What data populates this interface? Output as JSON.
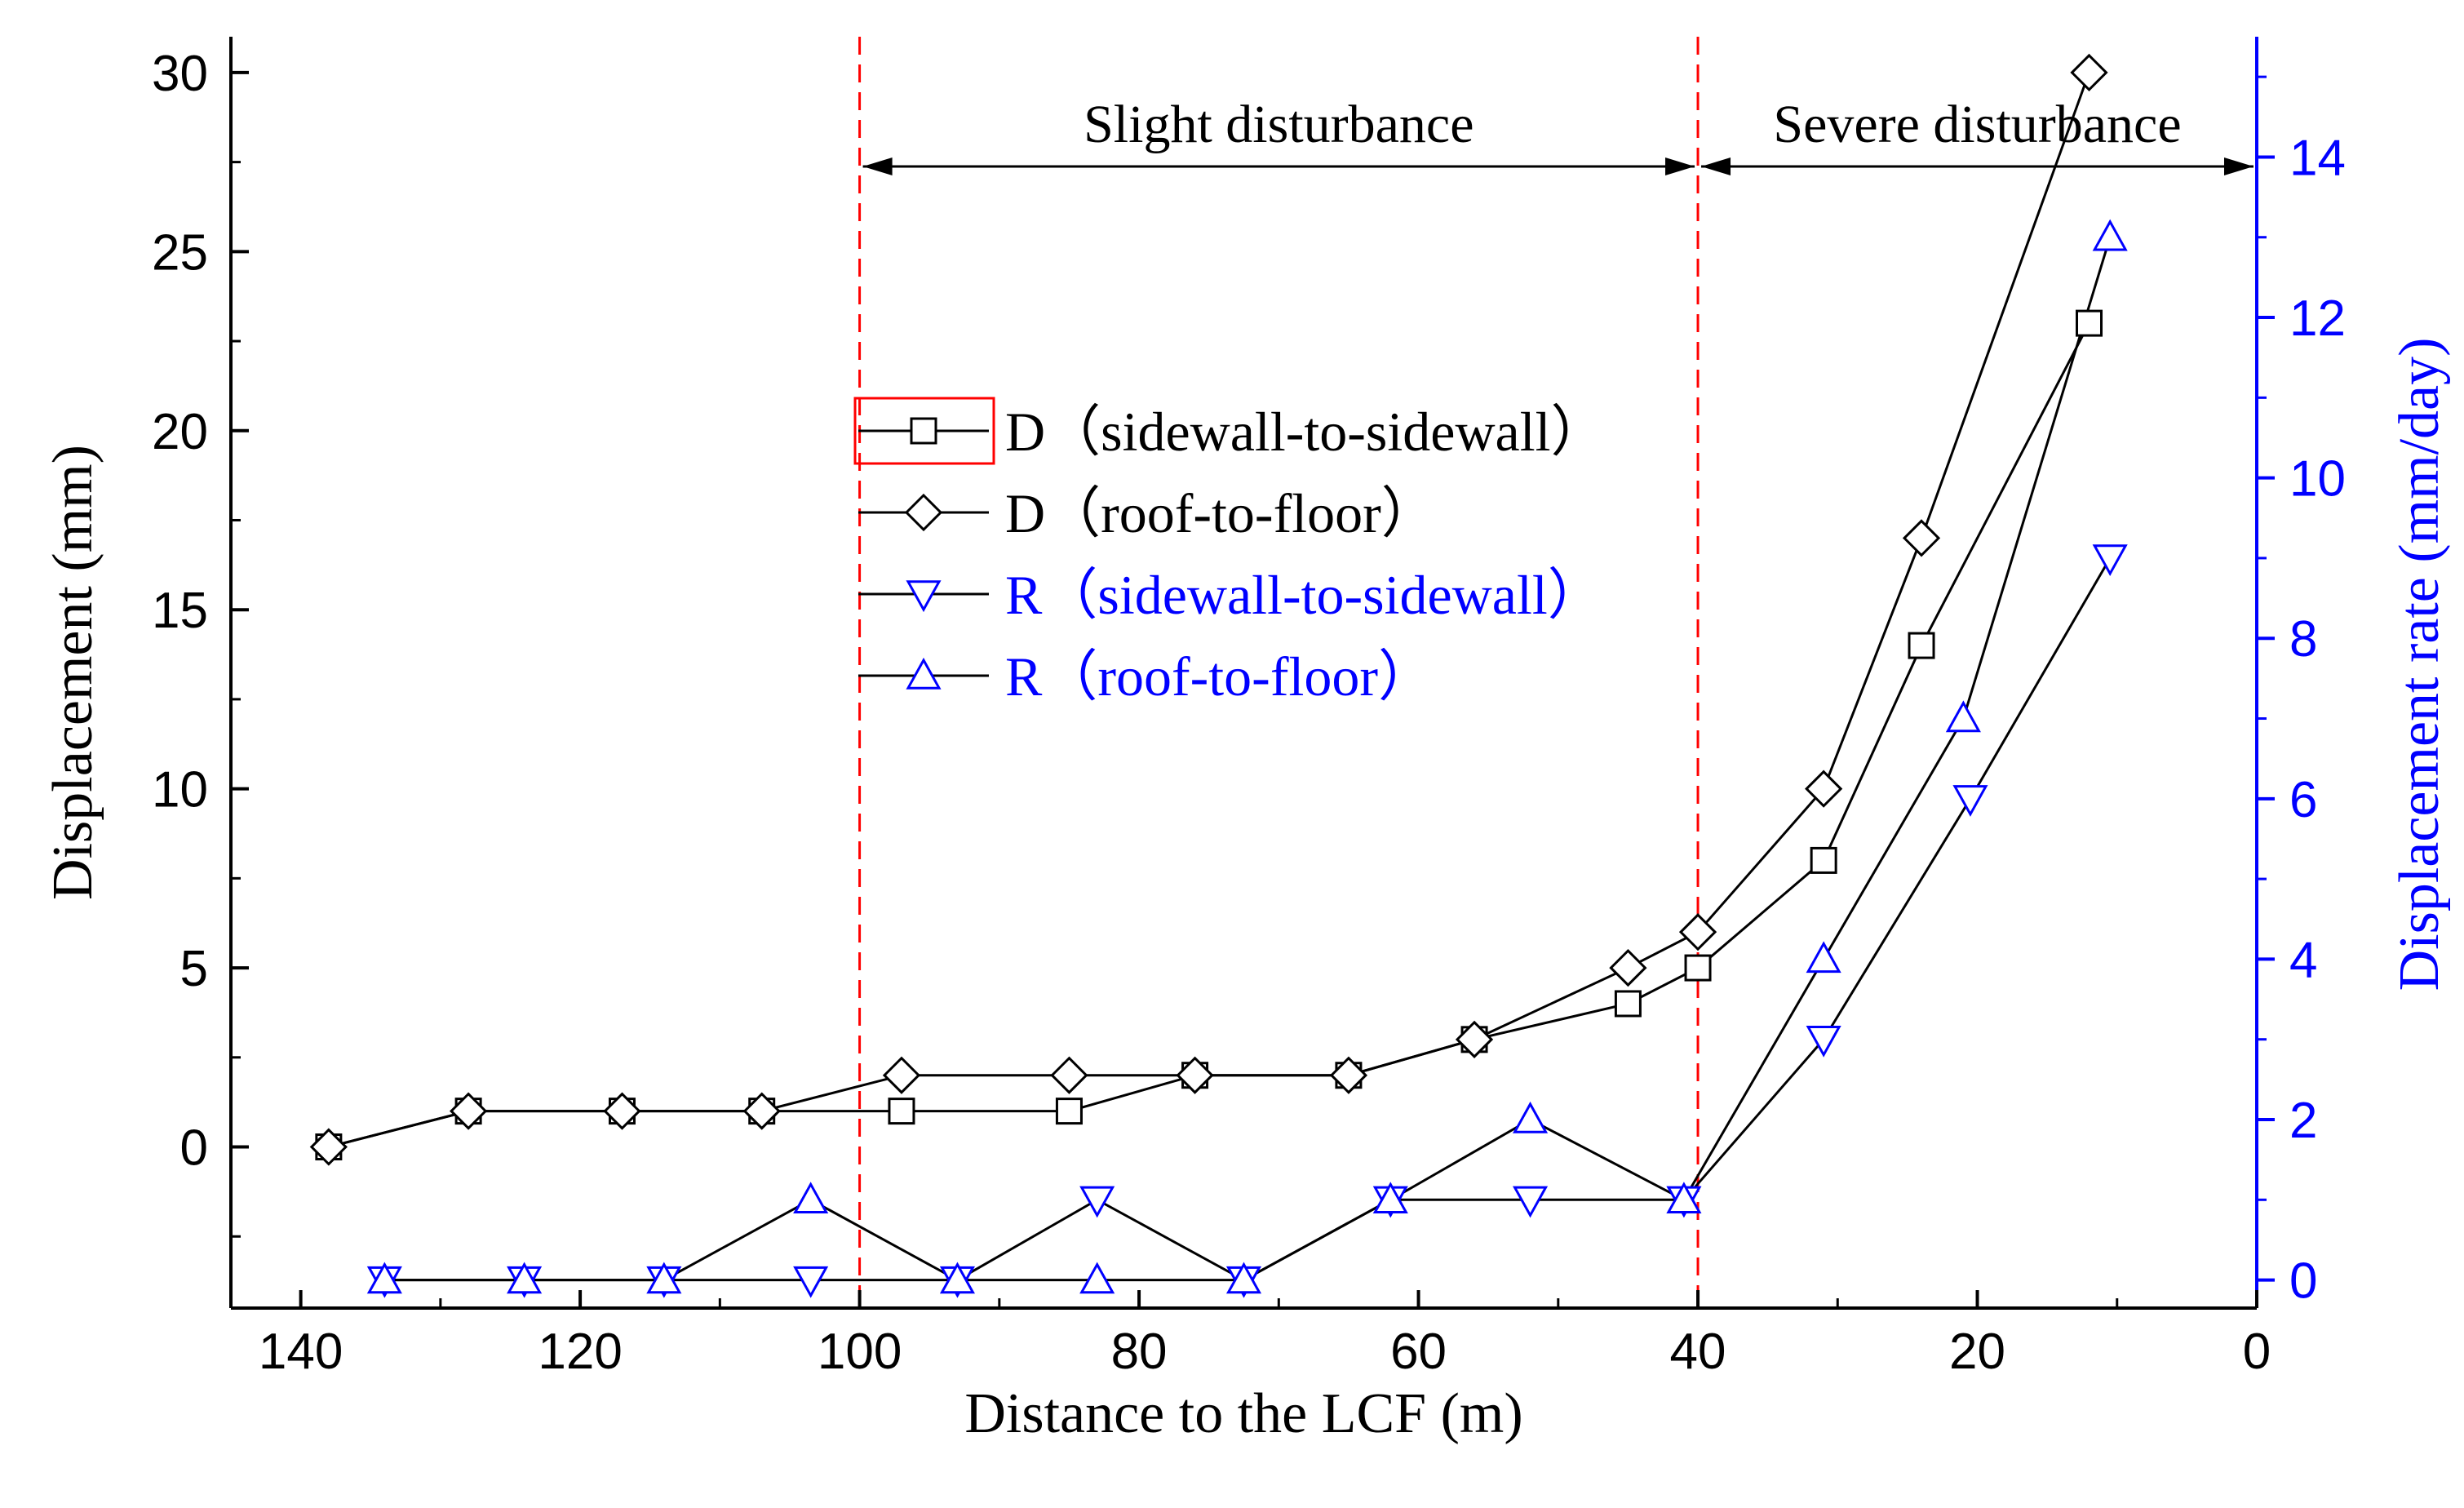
{
  "chart_data": {
    "type": "line",
    "x_label": "Distance to the LCF (m)",
    "y_left_label": "Displacement (mm)",
    "y_right_label": "Displacement rate (mm/day)",
    "x_lim": [
      0,
      145
    ],
    "x_reversed": true,
    "y_left_lim": [
      -4.5,
      31
    ],
    "y_right_lim": [
      -0.35,
      15.5
    ],
    "x_ticks": [
      "140",
      "120",
      "100",
      "80",
      "60",
      "40",
      "20",
      "0"
    ],
    "y_left_ticks": [
      "0",
      "5",
      "10",
      "15",
      "20",
      "25",
      "30"
    ],
    "y_right_ticks": [
      "0",
      "2",
      "4",
      "6",
      "8",
      "10",
      "12",
      "14"
    ],
    "colors": {
      "D": "#000000",
      "R": "#0000ff",
      "zone_line": "#ff0000"
    },
    "zones": [
      {
        "label": "Slight disturbance",
        "x_start": 100,
        "x_end": 40
      },
      {
        "label": "Severe disturbance",
        "x_start": 40,
        "x_end": 0
      }
    ],
    "zone_lines_x": [
      100,
      40
    ],
    "series": [
      {
        "key": "D_sidewall",
        "name": "D（sidewall-to-sidewall）",
        "axis": "left",
        "marker": "square",
        "x": [
          138,
          128,
          117,
          107,
          97,
          85,
          76,
          65,
          56,
          45,
          40,
          31,
          24,
          12
        ],
        "y": [
          0,
          1,
          1,
          1,
          1,
          1,
          2,
          2,
          3,
          4,
          5,
          8,
          14,
          23
        ]
      },
      {
        "key": "D_roof",
        "name": "D（roof-to-floor）",
        "axis": "left",
        "marker": "diamond",
        "x": [
          138,
          128,
          117,
          107,
          97,
          85,
          76,
          65,
          56,
          45,
          40,
          31,
          24,
          12
        ],
        "y": [
          0,
          1,
          1,
          1,
          2,
          2,
          2,
          2,
          3,
          5,
          6,
          10,
          17,
          30
        ]
      },
      {
        "key": "R_sidewall",
        "name": "R（sidewall-to-sidewall）",
        "axis": "right",
        "marker": "triangle-down",
        "x": [
          134,
          124,
          114,
          103.5,
          93,
          83,
          72.5,
          62,
          52,
          41,
          31,
          20.5,
          10.5
        ],
        "y": [
          0,
          0,
          0,
          0,
          0,
          1,
          0,
          1,
          1,
          1,
          3,
          6,
          9
        ]
      },
      {
        "key": "R_roof",
        "name": "R（roof-to-floor）",
        "axis": "right",
        "marker": "triangle-up",
        "x": [
          134,
          124,
          114,
          103.5,
          93,
          83,
          72.5,
          62,
          52,
          41,
          31,
          21,
          10.5
        ],
        "y": [
          0,
          0,
          0,
          1,
          0,
          0,
          0,
          1,
          2,
          1,
          4,
          7,
          13
        ]
      }
    ],
    "legend": {
      "position": "center",
      "entries": [
        {
          "prefix": "D",
          "text": "（sidewall-to-sidewall）",
          "marker": "square",
          "color": "#000000"
        },
        {
          "prefix": "D",
          "text": "（roof-to-floor）",
          "marker": "diamond",
          "color": "#000000"
        },
        {
          "prefix": "R",
          "text": "（sidewall-to-sidewall）",
          "marker": "triangle-down",
          "color": "#0000ff"
        },
        {
          "prefix": "R",
          "text": "（roof-to-floor）",
          "marker": "triangle-up",
          "color": "#0000ff"
        }
      ]
    }
  }
}
